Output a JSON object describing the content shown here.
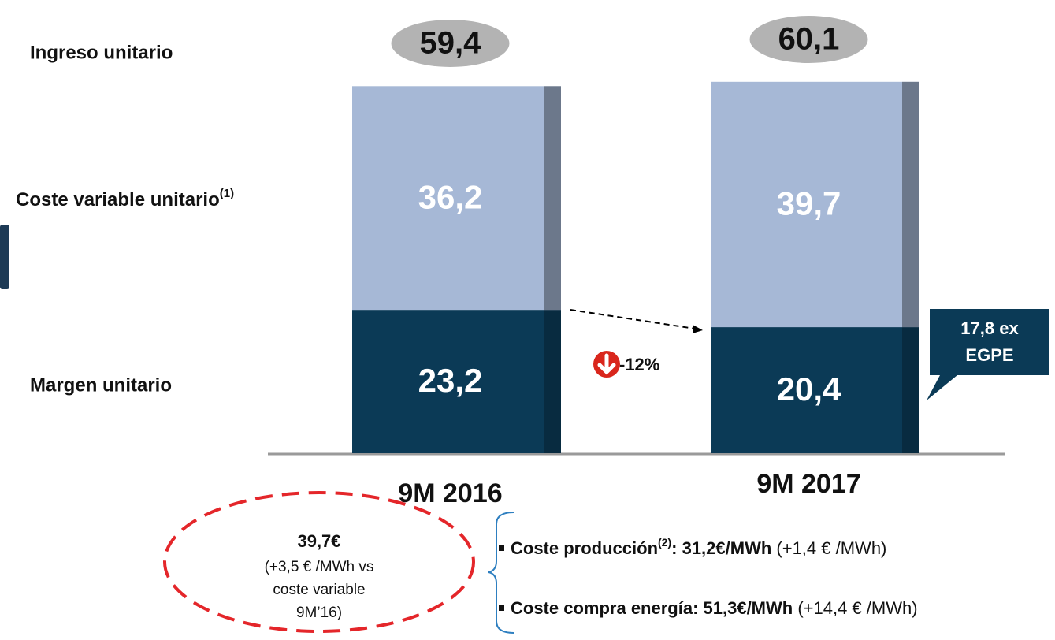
{
  "chart_data": {
    "type": "bar",
    "stacked": true,
    "categories": [
      "9M 2016",
      "9M 2017"
    ],
    "series": [
      {
        "name": "Margen unitario",
        "color": "#0b3a56",
        "values": [
          23.2,
          20.4
        ],
        "value_labels": [
          "23,2",
          "20,4"
        ]
      },
      {
        "name": "Coste variable unitario",
        "name_note": "(1)",
        "color": "#a6b8d6",
        "values": [
          36.2,
          39.7
        ],
        "value_labels": [
          "36,2",
          "39,7"
        ]
      }
    ],
    "totals": {
      "name": "Ingreso unitario",
      "color": "#b3b3b3",
      "values": [
        59.4,
        60.1
      ],
      "value_labels": [
        "59,4",
        "60,1"
      ]
    },
    "annotations": {
      "change": "-12%",
      "callout": [
        "17,8 ex",
        "EGPE"
      ],
      "note_value": "39,7€",
      "note_lines": [
        "(+3,5 € /MWh vs",
        "coste variable",
        "9M’16)"
      ],
      "bullets": [
        {
          "label": "Coste producción",
          "sup": "(2)",
          "value": ": 31,2€/MWh",
          "detail": " (+1,4 € /MWh)"
        },
        {
          "label": "Coste compra energía: 51,3€/MWh",
          "detail": " (+14,4 € /MWh)"
        }
      ]
    }
  }
}
